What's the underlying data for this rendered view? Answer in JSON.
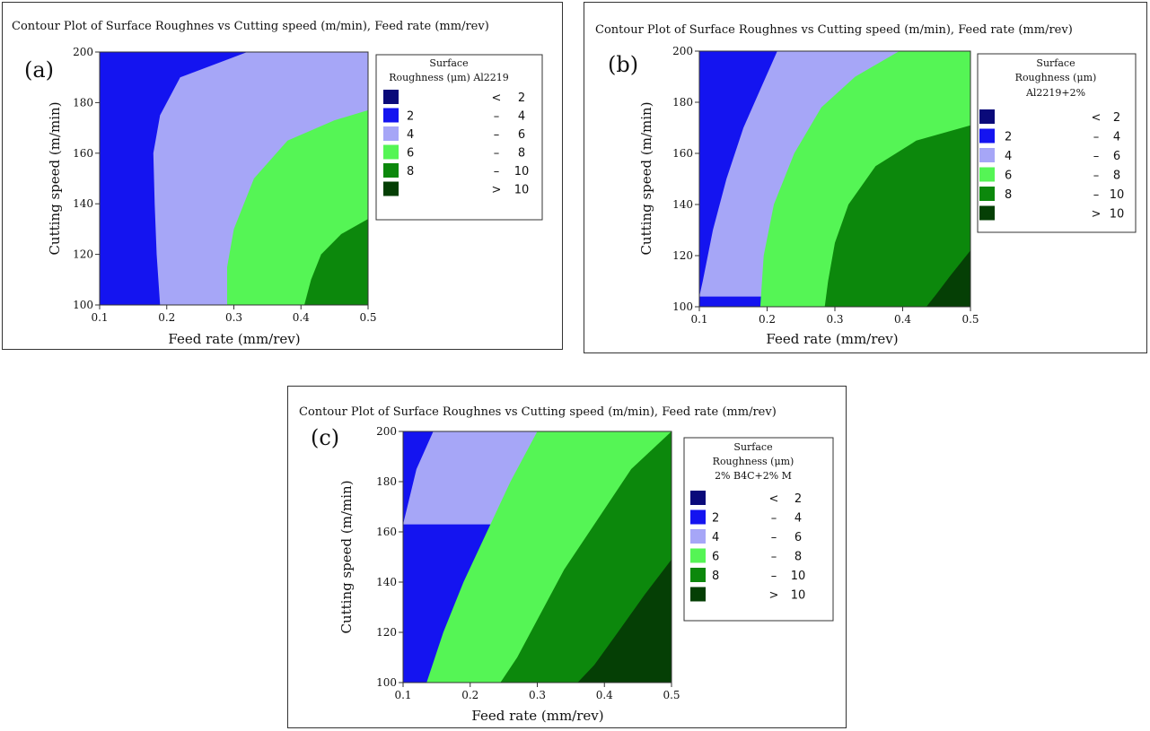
{
  "colors": {
    "lt2": "#0a0a7a",
    "b2_4": "#1414f0",
    "b4_6": "#a6a6f7",
    "b6_8": "#55f555",
    "b8_10": "#0c880c",
    "gt10": "#053f05",
    "frame": "#333333"
  },
  "chart_data": [
    {
      "type": "contour",
      "panel_label": "(a)",
      "title": "Contour Plot of Surface Roughnes vs Cutting speed (m/min), Feed rate (mm/rev)",
      "xlabel": "Feed rate (mm/rev)",
      "ylabel": "Cutting speed (m/min)",
      "xlim": [
        0.1,
        0.5
      ],
      "ylim": [
        100,
        200
      ],
      "xticks": [
        "0.1",
        "0.2",
        "0.3",
        "0.4",
        "0.5"
      ],
      "yticks": [
        "100",
        "120",
        "140",
        "160",
        "180",
        "200"
      ],
      "legend": {
        "title": [
          "Surface",
          "Roughness (μm) Al2219"
        ],
        "entries": [
          {
            "key": "lt2",
            "lo": "",
            "sym": "<",
            "hi": "2"
          },
          {
            "key": "b2_4",
            "lo": "2",
            "sym": "–",
            "hi": "4"
          },
          {
            "key": "b4_6",
            "lo": "4",
            "sym": "–",
            "hi": "6"
          },
          {
            "key": "b6_8",
            "lo": "6",
            "sym": "–",
            "hi": "8"
          },
          {
            "key": "b8_10",
            "lo": "8",
            "sym": "–",
            "hi": "10"
          },
          {
            "key": "gt10",
            "lo": "",
            "sym": ">",
            "hi": "10"
          }
        ]
      },
      "contours": [
        {
          "level": 4,
          "points": [
            [
              0.32,
              200
            ],
            [
              0.22,
              190
            ],
            [
              0.19,
              175
            ],
            [
              0.18,
              160
            ],
            [
              0.182,
              140
            ],
            [
              0.185,
              120
            ],
            [
              0.19,
              100
            ]
          ]
        },
        {
          "level": 6,
          "points": [
            [
              0.5,
              177
            ],
            [
              0.45,
              173
            ],
            [
              0.38,
              165
            ],
            [
              0.33,
              150
            ],
            [
              0.3,
              130
            ],
            [
              0.29,
              115
            ],
            [
              0.29,
              100
            ]
          ]
        },
        {
          "level": 8,
          "points": [
            [
              0.5,
              134
            ],
            [
              0.46,
              128
            ],
            [
              0.43,
              120
            ],
            [
              0.415,
              110
            ],
            [
              0.405,
              100
            ]
          ]
        }
      ]
    },
    {
      "type": "contour",
      "panel_label": "(b)",
      "title": "Contour Plot of Surface Roughnes vs Cutting speed (m/min), Feed rate (mm/rev)",
      "xlabel": "Feed rate (mm/rev)",
      "ylabel": "Cutting speed (m/min)",
      "xlim": [
        0.1,
        0.5
      ],
      "ylim": [
        100,
        200
      ],
      "xticks": [
        "0.1",
        "0.2",
        "0.3",
        "0.4",
        "0.5"
      ],
      "yticks": [
        "100",
        "120",
        "140",
        "160",
        "180",
        "200"
      ],
      "legend": {
        "title": [
          "Surface",
          "Roughness (μm)",
          "Al2219+2%"
        ],
        "entries": [
          {
            "key": "lt2",
            "lo": "",
            "sym": "<",
            "hi": "2"
          },
          {
            "key": "b2_4",
            "lo": "2",
            "sym": "–",
            "hi": "4"
          },
          {
            "key": "b4_6",
            "lo": "4",
            "sym": "–",
            "hi": "6"
          },
          {
            "key": "b6_8",
            "lo": "6",
            "sym": "–",
            "hi": "8"
          },
          {
            "key": "b8_10",
            "lo": "8",
            "sym": "–",
            "hi": "10"
          },
          {
            "key": "gt10",
            "lo": "",
            "sym": ">",
            "hi": "10"
          }
        ]
      },
      "contours": [
        {
          "level": 4,
          "points": [
            [
              0.215,
              200
            ],
            [
              0.19,
              185
            ],
            [
              0.165,
              170
            ],
            [
              0.14,
              150
            ],
            [
              0.12,
              130
            ],
            [
              0.105,
              110
            ],
            [
              0.1,
              104
            ]
          ]
        },
        {
          "level": 6,
          "points": [
            [
              0.395,
              200
            ],
            [
              0.33,
              190
            ],
            [
              0.28,
              178
            ],
            [
              0.24,
              160
            ],
            [
              0.21,
              140
            ],
            [
              0.195,
              120
            ],
            [
              0.19,
              100
            ]
          ]
        },
        {
          "level": 8,
          "points": [
            [
              0.5,
              171
            ],
            [
              0.42,
              165
            ],
            [
              0.36,
              155
            ],
            [
              0.32,
              140
            ],
            [
              0.3,
              125
            ],
            [
              0.29,
              110
            ],
            [
              0.285,
              100
            ]
          ]
        },
        {
          "level": 10,
          "points": [
            [
              0.5,
              122
            ],
            [
              0.47,
              112
            ],
            [
              0.45,
              105
            ],
            [
              0.435,
              100
            ]
          ]
        }
      ]
    },
    {
      "type": "contour",
      "panel_label": "(c)",
      "title": "Contour Plot of Surface Roughnes vs Cutting speed (m/min), Feed rate (mm/rev)",
      "xlabel": "Feed rate (mm/rev)",
      "ylabel": "Cutting speed (m/min)",
      "xlim": [
        0.1,
        0.5
      ],
      "ylim": [
        100,
        200
      ],
      "xticks": [
        "0.1",
        "0.2",
        "0.3",
        "0.4",
        "0.5"
      ],
      "yticks": [
        "100",
        "120",
        "140",
        "160",
        "180",
        "200"
      ],
      "legend": {
        "title": [
          "Surface",
          "Roughness (μm)",
          "2% B4C+2% M"
        ],
        "entries": [
          {
            "key": "lt2",
            "lo": "",
            "sym": "<",
            "hi": "2"
          },
          {
            "key": "b2_4",
            "lo": "2",
            "sym": "–",
            "hi": "4"
          },
          {
            "key": "b4_6",
            "lo": "4",
            "sym": "–",
            "hi": "6"
          },
          {
            "key": "b6_8",
            "lo": "6",
            "sym": "–",
            "hi": "8"
          },
          {
            "key": "b8_10",
            "lo": "8",
            "sym": "–",
            "hi": "10"
          },
          {
            "key": "gt10",
            "lo": "",
            "sym": ">",
            "hi": "10"
          }
        ]
      },
      "contours": [
        {
          "level": 4,
          "points": [
            [
              0.145,
              200
            ],
            [
              0.12,
              185
            ],
            [
              0.1,
              163
            ]
          ]
        },
        {
          "level": 6,
          "points": [
            [
              0.3,
              200
            ],
            [
              0.26,
              180
            ],
            [
              0.225,
              160
            ],
            [
              0.19,
              140
            ],
            [
              0.16,
              120
            ],
            [
              0.135,
              100
            ]
          ]
        },
        {
          "level": 8,
          "points": [
            [
              0.5,
              200
            ],
            [
              0.44,
              185
            ],
            [
              0.39,
              165
            ],
            [
              0.34,
              145
            ],
            [
              0.3,
              125
            ],
            [
              0.27,
              110
            ],
            [
              0.245,
              100
            ]
          ]
        },
        {
          "level": 10,
          "points": [
            [
              0.5,
              149
            ],
            [
              0.46,
              135
            ],
            [
              0.42,
              120
            ],
            [
              0.385,
              107
            ],
            [
              0.36,
              100
            ]
          ]
        }
      ]
    }
  ]
}
